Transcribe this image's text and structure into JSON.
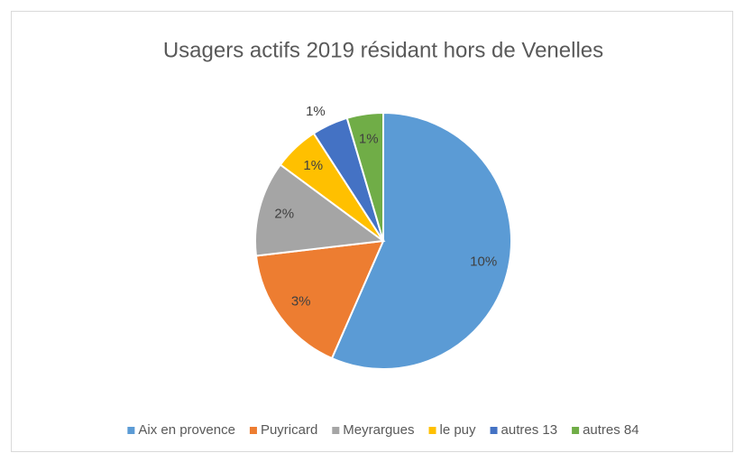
{
  "chart_data": {
    "type": "pie",
    "title": "Usagers actifs 2019 résidant hors de Venelles",
    "categories": [
      "Aix en provence",
      "Puyricard",
      "Meyrargues",
      "le puy",
      "autres 13",
      "autres 84"
    ],
    "values": [
      9.9,
      2.9,
      2.1,
      1.0,
      0.8,
      0.8
    ],
    "value_labels": [
      "10%",
      "3%",
      "2%",
      "1%",
      "1%",
      "1%"
    ],
    "colors": [
      "#5b9bd5",
      "#ed7d31",
      "#a5a5a5",
      "#ffc000",
      "#4472c4",
      "#70ad47"
    ],
    "legend": "bottom"
  }
}
